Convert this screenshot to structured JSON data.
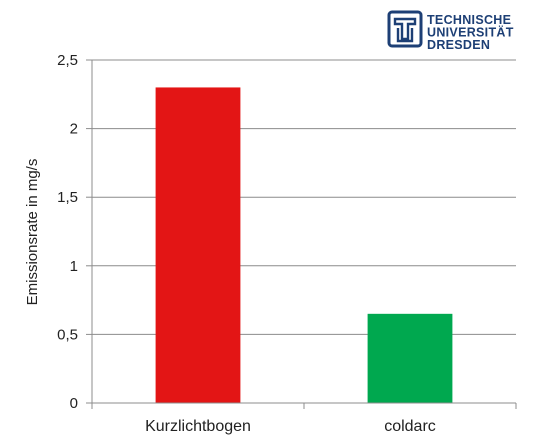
{
  "logo": {
    "line1": "TECHNISCHE",
    "line2": "UNIVERSITÄT",
    "line3": "DRESDEN",
    "color": "#1d3f75"
  },
  "chart_data": {
    "type": "bar",
    "title": "",
    "xlabel": "",
    "ylabel": "Emissionsrate in mg/s",
    "categories": [
      "Kurzlichtbogen",
      "coldarc"
    ],
    "values": [
      2.3,
      0.65
    ],
    "colors": [
      "#e31515",
      "#00a84f"
    ],
    "ylim": [
      0,
      2.5
    ],
    "yticks": [
      0,
      0.5,
      1,
      1.5,
      2,
      2.5
    ],
    "ytick_labels": [
      "0",
      "0,5",
      "1",
      "1,5",
      "2",
      "2,5"
    ],
    "grid": true,
    "legend": "none"
  }
}
